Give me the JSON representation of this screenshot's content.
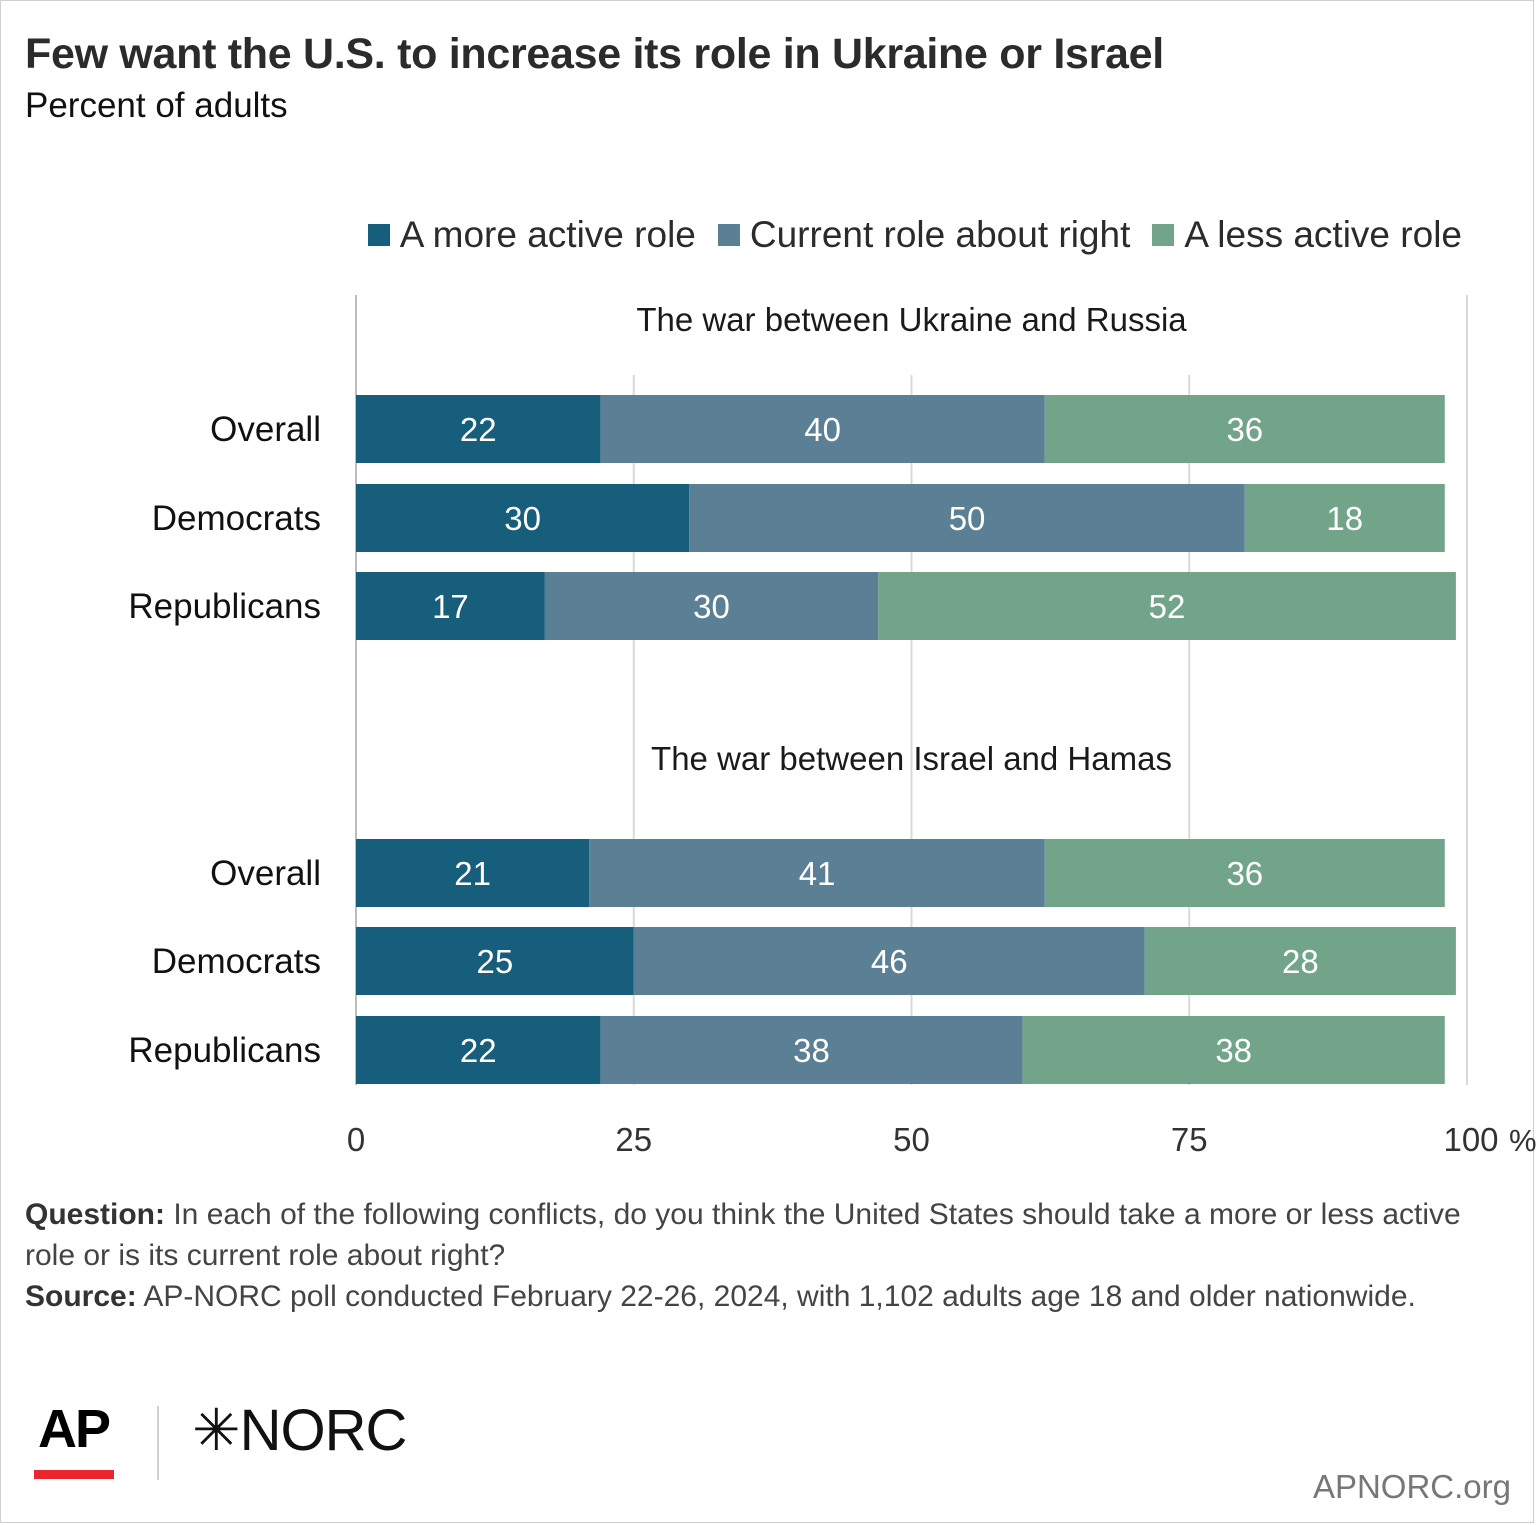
{
  "header": {
    "title": "Few want the U.S. to increase its role in Ukraine or Israel",
    "subtitle": "Percent of adults"
  },
  "legend": [
    {
      "label": "A more active role",
      "color": "#175d7c"
    },
    {
      "label": "Current role about right",
      "color": "#5b8096"
    },
    {
      "label": "A less active role",
      "color": "#72a489"
    }
  ],
  "chart_data": {
    "type": "bar",
    "orientation": "horizontal",
    "stacked": true,
    "xlim": [
      0,
      100
    ],
    "x_ticks": [
      "0",
      "25",
      "50",
      "75",
      "100"
    ],
    "x_unit": "%",
    "grid": true,
    "legend_position": "top-right",
    "series_names": [
      "A more active role",
      "Current role about right",
      "A less active role"
    ],
    "panels": [
      {
        "title": "The war between Ukraine and Russia",
        "rows": [
          {
            "label": "Overall",
            "values": [
              22,
              40,
              36
            ]
          },
          {
            "label": "Democrats",
            "values": [
              30,
              50,
              18
            ]
          },
          {
            "label": "Republicans",
            "values": [
              17,
              30,
              52
            ]
          }
        ]
      },
      {
        "title": "The war between Israel and Hamas",
        "rows": [
          {
            "label": "Overall",
            "values": [
              21,
              41,
              36
            ]
          },
          {
            "label": "Democrats",
            "values": [
              25,
              46,
              28
            ]
          },
          {
            "label": "Republicans",
            "values": [
              22,
              38,
              38
            ]
          }
        ]
      }
    ]
  },
  "notes": {
    "question_label": "Question:",
    "question_text": " In each of the following conflicts, do you think the United States should take a more or less active role or is its current role about right?",
    "source_label": "Source:",
    "source_text": " AP-NORC poll conducted February 22-26, 2024, with 1,102 adults age 18 and older nationwide."
  },
  "footer": {
    "logo_ap": "AP",
    "logo_norc": "✳NORC",
    "site": "APNORC.org"
  }
}
